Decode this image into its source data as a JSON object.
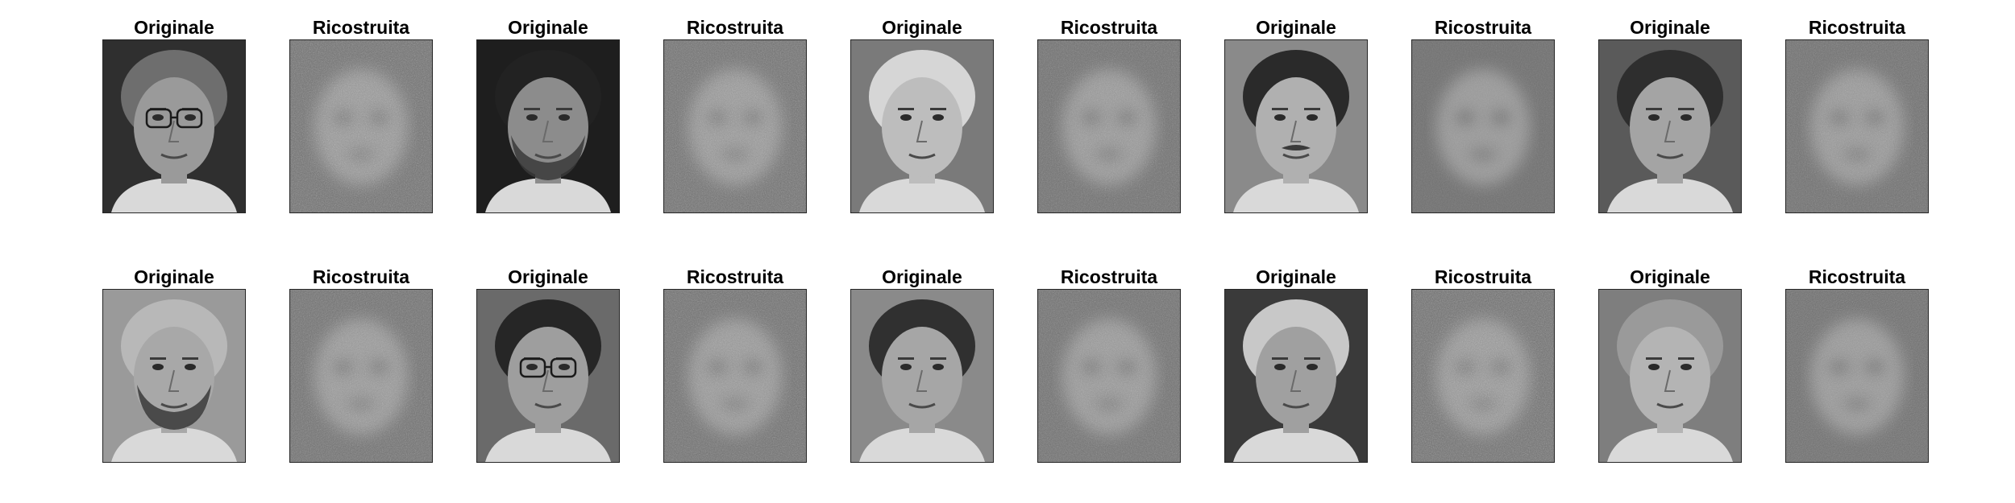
{
  "figure": {
    "colormap": "grayscale",
    "rows": [
      {
        "panels": [
          {
            "title": "Originale",
            "kind": "original"
          },
          {
            "title": "Ricostruita",
            "kind": "reconstruction"
          },
          {
            "title": "Originale",
            "kind": "original"
          },
          {
            "title": "Ricostruita",
            "kind": "reconstruction"
          },
          {
            "title": "Originale",
            "kind": "original"
          },
          {
            "title": "Ricostruita",
            "kind": "reconstruction"
          },
          {
            "title": "Originale",
            "kind": "original"
          },
          {
            "title": "Ricostruita",
            "kind": "reconstruction"
          },
          {
            "title": "Originale",
            "kind": "original"
          },
          {
            "title": "Ricostruita",
            "kind": "reconstruction"
          }
        ]
      },
      {
        "panels": [
          {
            "title": "Originale",
            "kind": "original"
          },
          {
            "title": "Ricostruita",
            "kind": "reconstruction"
          },
          {
            "title": "Originale",
            "kind": "original"
          },
          {
            "title": "Ricostruita",
            "kind": "reconstruction"
          },
          {
            "title": "Originale",
            "kind": "original"
          },
          {
            "title": "Ricostruita",
            "kind": "reconstruction"
          },
          {
            "title": "Originale",
            "kind": "original"
          },
          {
            "title": "Ricostruita",
            "kind": "reconstruction"
          },
          {
            "title": "Originale",
            "kind": "original"
          },
          {
            "title": "Ricostruita",
            "kind": "reconstruction"
          }
        ]
      }
    ]
  }
}
